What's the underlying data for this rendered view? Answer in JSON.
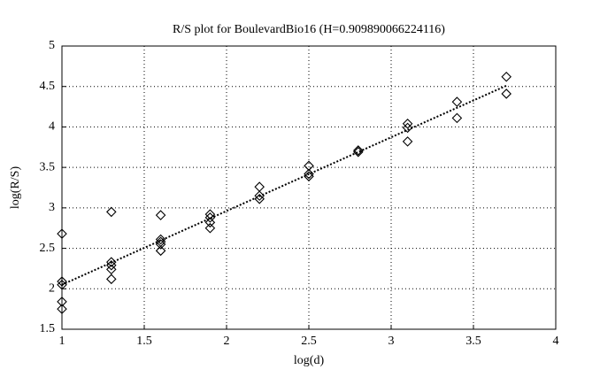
{
  "chart_data": {
    "type": "scatter",
    "title": "R/S plot for BoulevardBio16 (H=0.909890066224116)",
    "x_label": "log(d)",
    "y_label": "log(R/S)",
    "xlim": [
      1,
      4
    ],
    "ylim": [
      1.5,
      5
    ],
    "xticks": [
      1,
      1.5,
      2,
      2.5,
      3,
      3.5,
      4
    ],
    "yticks": [
      1.5,
      2,
      2.5,
      3,
      3.5,
      4,
      4.5,
      5
    ],
    "grid": true,
    "marker": "diamond",
    "color": "#000000",
    "x": [
      1,
      1,
      1,
      1,
      1,
      1.3,
      1.3,
      1.3,
      1.3,
      1.3,
      1.6,
      1.6,
      1.6,
      1.6,
      1.6,
      1.9,
      1.9,
      1.9,
      1.9,
      2.2,
      2.2,
      2.2,
      2.5,
      2.5,
      2.5,
      2.8,
      2.8,
      3.1,
      3.1,
      3.1,
      3.4,
      3.4,
      3.7,
      3.7
    ],
    "values": [
      2.68,
      2.09,
      2.05,
      1.84,
      1.75,
      2.95,
      2.33,
      2.29,
      2.24,
      2.12,
      2.91,
      2.61,
      2.58,
      2.55,
      2.47,
      2.92,
      2.88,
      2.82,
      2.75,
      3.26,
      3.15,
      3.11,
      3.52,
      3.42,
      3.39,
      3.71,
      3.69,
      4.04,
      3.99,
      3.82,
      4.31,
      4.11,
      4.62,
      4.41
    ],
    "fit_line": {
      "x": [
        1,
        3.7
      ],
      "values": [
        2.05,
        4.51
      ]
    }
  }
}
